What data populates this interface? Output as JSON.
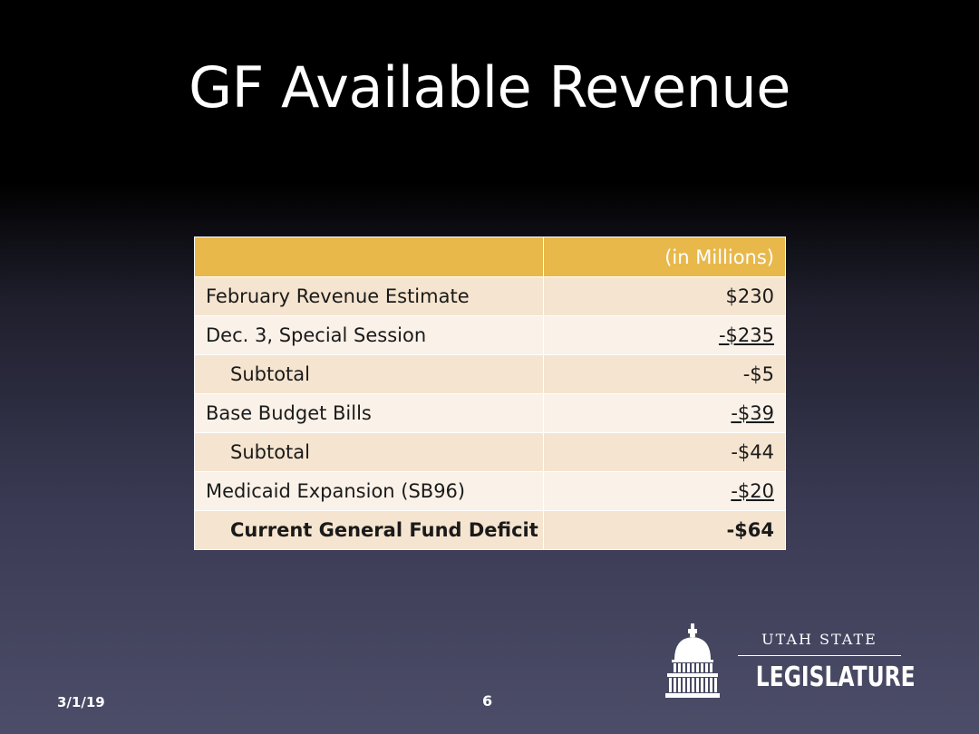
{
  "slide": {
    "title": "GF Available Revenue",
    "date": "3/1/19",
    "page_number": "6"
  },
  "table": {
    "header": {
      "label": "",
      "value": "(in Millions)"
    },
    "rows": [
      {
        "label": "February Revenue Estimate",
        "value": "$230"
      },
      {
        "label": "Dec. 3, Special Session",
        "value": "-$235"
      },
      {
        "label": "Subtotal",
        "value": "-$5"
      },
      {
        "label": "Base Budget Bills",
        "value": "-$39"
      },
      {
        "label": "Subtotal",
        "value": "-$44"
      },
      {
        "label": "Medicaid Expansion (SB96)",
        "value": "-$20"
      },
      {
        "label": "Current General Fund Deficit",
        "value": "-$64"
      }
    ]
  },
  "logo": {
    "line1": "UTAH STATE",
    "line2": "LEGISLATURE",
    "icon": "capitol-dome-icon"
  },
  "colors": {
    "header_bg": "#e8b84a",
    "row_dark": "#f5e4cf",
    "row_light": "#faf1e8"
  }
}
